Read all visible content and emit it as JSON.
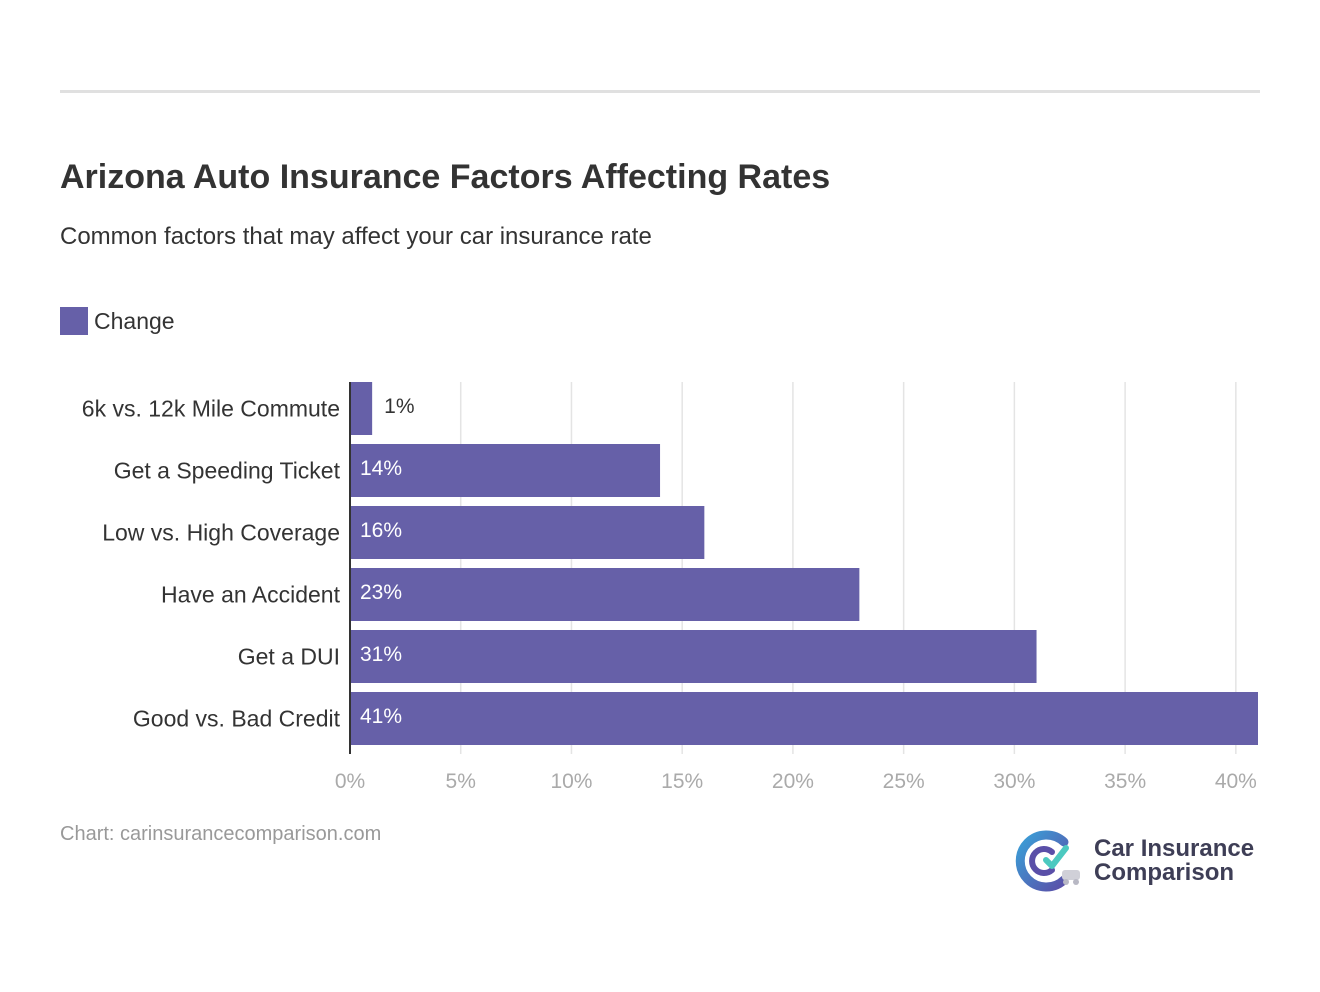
{
  "header": {
    "title": "Arizona Auto Insurance Factors Affecting Rates",
    "subtitle": "Common factors that may affect your car insurance rate"
  },
  "legend": {
    "label": "Change"
  },
  "footer": {
    "credit": "Chart: carinsurancecomparison.com",
    "brand_line1": "Car Insurance",
    "brand_line2": "Comparison",
    "brand_icon": "car-insurance-comparison-logo-icon"
  },
  "colors": {
    "bar": "#6660a8",
    "grid": "#e4e4e4",
    "axis": "#333333",
    "tick_label": "#aaaaaa",
    "label_inside": "#ffffff",
    "label_outside": "#333333"
  },
  "chart_data": {
    "type": "bar",
    "orientation": "horizontal",
    "categories": [
      "6k vs. 12k Mile Commute",
      "Get a Speeding Ticket",
      "Low vs. High Coverage",
      "Have an Accident",
      "Get a DUI",
      "Good vs. Bad Credit"
    ],
    "series": [
      {
        "name": "Change",
        "values": [
          1,
          14,
          16,
          23,
          31,
          41
        ],
        "labels": [
          "1%",
          "14%",
          "16%",
          "23%",
          "31%",
          "41%"
        ]
      }
    ],
    "xlim": [
      0,
      41
    ],
    "xticks": [
      0,
      5,
      10,
      15,
      20,
      25,
      30,
      35,
      40
    ],
    "xtick_labels": [
      "0%",
      "5%",
      "10%",
      "15%",
      "20%",
      "25%",
      "30%",
      "35%",
      "40%"
    ],
    "grid": true,
    "legend": "top-left",
    "title": "Arizona Auto Insurance Factors Affecting Rates",
    "subtitle": "Common factors that may affect your car insurance rate"
  }
}
